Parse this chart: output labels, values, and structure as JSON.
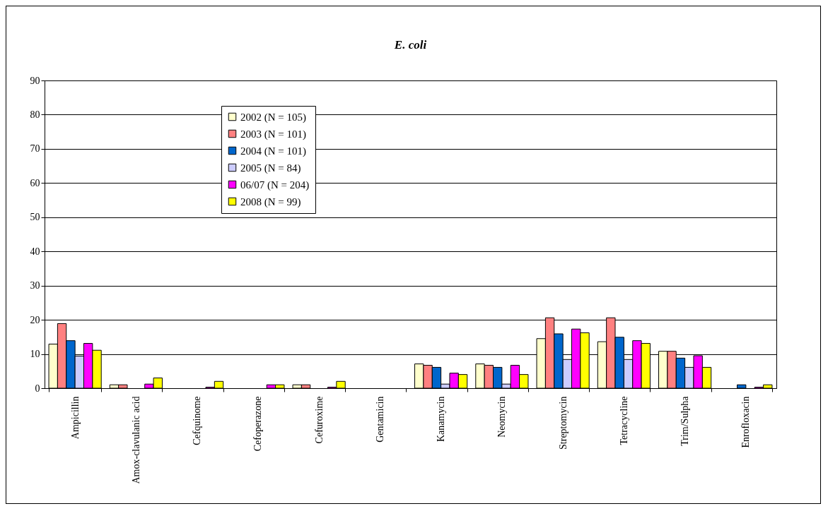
{
  "chart_data": {
    "type": "bar",
    "title": "E. coli",
    "categories": [
      "Ampicillin",
      "Amox-clavulanic acid",
      "Cefquinome",
      "Cefoperazone",
      "Cefuroxime",
      "Gentamicin",
      "Kanamycin",
      "Neomycin",
      "Streptomycin",
      "Tetracycline",
      "Trim/Sulpha",
      "Enrofloxacin"
    ],
    "series": [
      {
        "name": "2002 (N = 105)",
        "color": "#ffffcc",
        "values": [
          12.9,
          1.0,
          0,
          0,
          1.0,
          0,
          7.1,
          7.1,
          14.5,
          13.6,
          10.8,
          0
        ]
      },
      {
        "name": "2003 (N = 101)",
        "color": "#ff8080",
        "values": [
          18.9,
          1.0,
          0,
          0,
          1.0,
          0,
          6.7,
          6.7,
          20.6,
          20.6,
          10.8,
          0
        ]
      },
      {
        "name": "2004 (N = 101)",
        "color": "#0066cc",
        "values": [
          13.9,
          0,
          0,
          0,
          0,
          0,
          6.1,
          6.1,
          15.9,
          14.9,
          8.8,
          1.0
        ]
      },
      {
        "name": "2005 (N = 84)",
        "color": "#ccccff",
        "values": [
          9.4,
          0,
          0,
          0,
          0,
          0,
          1.2,
          1.2,
          8.4,
          8.4,
          6.1,
          0
        ]
      },
      {
        "name": "06/07 (N = 204)",
        "color": "#ff00ff",
        "values": [
          13.1,
          1.2,
          0.3,
          1.0,
          0.3,
          0,
          4.4,
          6.7,
          17.3,
          13.9,
          9.5,
          0.3
        ]
      },
      {
        "name": "2008 (N = 99)",
        "color": "#ffff00",
        "values": [
          11.1,
          3.0,
          2.0,
          1.0,
          2.0,
          0,
          4.0,
          4.0,
          16.2,
          13.1,
          6.1,
          1.0
        ]
      }
    ],
    "ylim": [
      0,
      90
    ],
    "yticks": [
      0,
      10,
      20,
      30,
      40,
      50,
      60,
      70,
      80,
      90
    ],
    "grid": "y",
    "legend": "top left"
  }
}
